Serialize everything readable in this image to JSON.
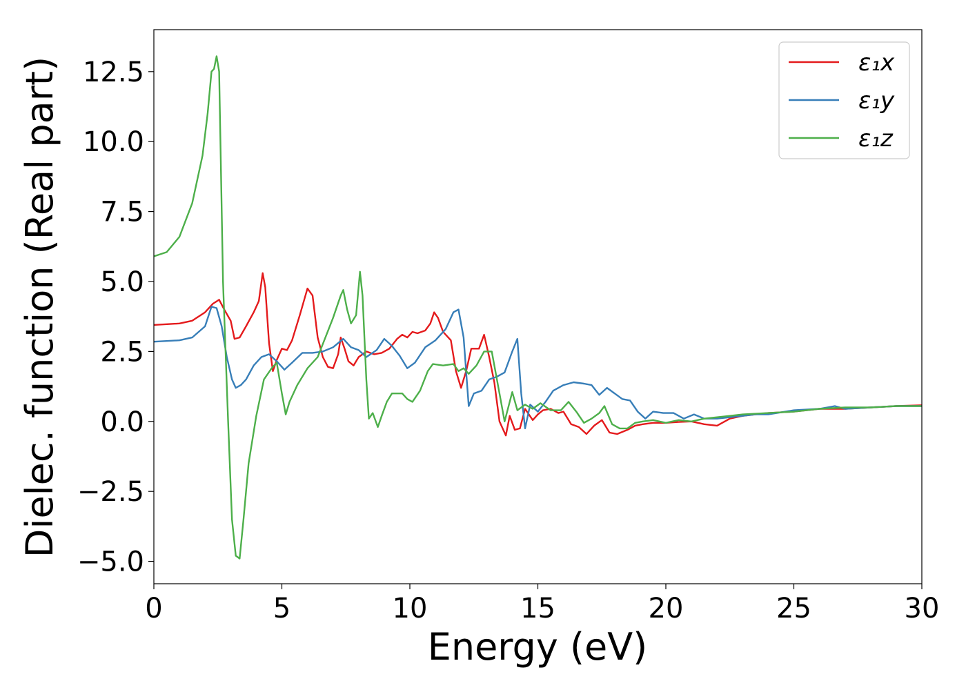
{
  "chart_data": {
    "type": "line",
    "title": "",
    "xlabel": "Energy (eV)",
    "ylabel": "Dielec. function (Real part)",
    "xlim": [
      0,
      30
    ],
    "ylim": [
      -5.8,
      14.0
    ],
    "xticks": [
      0,
      5,
      10,
      15,
      20,
      25,
      30
    ],
    "xtick_labels": [
      "0",
      "5",
      "10",
      "15",
      "20",
      "25",
      "30"
    ],
    "yticks": [
      -5.0,
      -2.5,
      0.0,
      2.5,
      5.0,
      7.5,
      10.0,
      12.5
    ],
    "ytick_labels": [
      "−5.0",
      "−2.5",
      "0.0",
      "2.5",
      "5.0",
      "7.5",
      "10.0",
      "12.5"
    ],
    "grid": false,
    "legend_position": "top-right",
    "series": [
      {
        "name": "ε₁x",
        "color": "#e41a1c",
        "points": [
          [
            0,
            3.45
          ],
          [
            1,
            3.5
          ],
          [
            1.5,
            3.6
          ],
          [
            2,
            3.9
          ],
          [
            2.3,
            4.2
          ],
          [
            2.55,
            4.35
          ],
          [
            2.75,
            4.0
          ],
          [
            3.0,
            3.6
          ],
          [
            3.15,
            2.95
          ],
          [
            3.35,
            3.0
          ],
          [
            3.6,
            3.4
          ],
          [
            3.9,
            3.9
          ],
          [
            4.1,
            4.3
          ],
          [
            4.25,
            5.3
          ],
          [
            4.35,
            4.8
          ],
          [
            4.5,
            2.8
          ],
          [
            4.65,
            1.8
          ],
          [
            4.8,
            2.2
          ],
          [
            5.0,
            2.6
          ],
          [
            5.2,
            2.55
          ],
          [
            5.4,
            2.9
          ],
          [
            5.7,
            3.8
          ],
          [
            6.0,
            4.75
          ],
          [
            6.2,
            4.5
          ],
          [
            6.4,
            3.0
          ],
          [
            6.6,
            2.3
          ],
          [
            6.8,
            1.95
          ],
          [
            7.0,
            1.9
          ],
          [
            7.2,
            2.4
          ],
          [
            7.3,
            3.0
          ],
          [
            7.45,
            2.6
          ],
          [
            7.6,
            2.15
          ],
          [
            7.8,
            2.0
          ],
          [
            8.0,
            2.3
          ],
          [
            8.3,
            2.5
          ],
          [
            8.6,
            2.4
          ],
          [
            8.9,
            2.45
          ],
          [
            9.2,
            2.6
          ],
          [
            9.5,
            2.95
          ],
          [
            9.7,
            3.1
          ],
          [
            9.9,
            3.0
          ],
          [
            10.1,
            3.2
          ],
          [
            10.3,
            3.15
          ],
          [
            10.6,
            3.25
          ],
          [
            10.8,
            3.5
          ],
          [
            10.95,
            3.9
          ],
          [
            11.1,
            3.7
          ],
          [
            11.3,
            3.2
          ],
          [
            11.6,
            2.9
          ],
          [
            11.8,
            1.8
          ],
          [
            12.0,
            1.2
          ],
          [
            12.2,
            1.8
          ],
          [
            12.4,
            2.6
          ],
          [
            12.7,
            2.6
          ],
          [
            12.9,
            3.1
          ],
          [
            13.1,
            2.3
          ],
          [
            13.3,
            1.4
          ],
          [
            13.5,
            0.0
          ],
          [
            13.75,
            -0.5
          ],
          [
            13.9,
            0.2
          ],
          [
            14.1,
            -0.3
          ],
          [
            14.3,
            -0.25
          ],
          [
            14.5,
            0.45
          ],
          [
            14.8,
            0.05
          ],
          [
            15.0,
            0.25
          ],
          [
            15.2,
            0.4
          ],
          [
            15.5,
            0.45
          ],
          [
            15.8,
            0.3
          ],
          [
            16.0,
            0.35
          ],
          [
            16.3,
            -0.1
          ],
          [
            16.6,
            -0.2
          ],
          [
            16.9,
            -0.45
          ],
          [
            17.2,
            -0.15
          ],
          [
            17.5,
            0.05
          ],
          [
            17.8,
            -0.4
          ],
          [
            18.1,
            -0.45
          ],
          [
            18.5,
            -0.3
          ],
          [
            18.8,
            -0.15
          ],
          [
            19.1,
            -0.1
          ],
          [
            19.5,
            -0.05
          ],
          [
            20.0,
            -0.05
          ],
          [
            20.5,
            -0.02
          ],
          [
            21.0,
            0.0
          ],
          [
            21.5,
            -0.1
          ],
          [
            22.0,
            -0.15
          ],
          [
            22.5,
            0.1
          ],
          [
            23.0,
            0.2
          ],
          [
            23.5,
            0.25
          ],
          [
            24.0,
            0.3
          ],
          [
            25.0,
            0.35
          ],
          [
            26.0,
            0.45
          ],
          [
            27.0,
            0.45
          ],
          [
            28.0,
            0.5
          ],
          [
            29.0,
            0.55
          ],
          [
            30.0,
            0.58
          ]
        ]
      },
      {
        "name": "ε₁y",
        "color": "#377eb8",
        "points": [
          [
            0,
            2.85
          ],
          [
            1,
            2.9
          ],
          [
            1.5,
            3.0
          ],
          [
            2.0,
            3.4
          ],
          [
            2.25,
            4.1
          ],
          [
            2.45,
            4.05
          ],
          [
            2.65,
            3.4
          ],
          [
            2.85,
            2.3
          ],
          [
            3.05,
            1.5
          ],
          [
            3.2,
            1.2
          ],
          [
            3.4,
            1.3
          ],
          [
            3.6,
            1.5
          ],
          [
            3.9,
            2.0
          ],
          [
            4.2,
            2.3
          ],
          [
            4.5,
            2.4
          ],
          [
            4.8,
            2.15
          ],
          [
            5.1,
            1.85
          ],
          [
            5.4,
            2.1
          ],
          [
            5.8,
            2.45
          ],
          [
            6.2,
            2.45
          ],
          [
            6.6,
            2.5
          ],
          [
            7.0,
            2.65
          ],
          [
            7.4,
            2.95
          ],
          [
            7.7,
            2.65
          ],
          [
            8.0,
            2.55
          ],
          [
            8.3,
            2.3
          ],
          [
            8.7,
            2.55
          ],
          [
            9.0,
            2.95
          ],
          [
            9.3,
            2.7
          ],
          [
            9.6,
            2.35
          ],
          [
            9.9,
            1.9
          ],
          [
            10.2,
            2.1
          ],
          [
            10.6,
            2.65
          ],
          [
            11.0,
            2.9
          ],
          [
            11.4,
            3.3
          ],
          [
            11.7,
            3.9
          ],
          [
            11.9,
            4.0
          ],
          [
            12.1,
            3.0
          ],
          [
            12.3,
            0.55
          ],
          [
            12.5,
            1.0
          ],
          [
            12.8,
            1.1
          ],
          [
            13.1,
            1.5
          ],
          [
            13.4,
            1.6
          ],
          [
            13.7,
            1.75
          ],
          [
            14.0,
            2.5
          ],
          [
            14.2,
            2.95
          ],
          [
            14.35,
            1.0
          ],
          [
            14.5,
            -0.25
          ],
          [
            14.7,
            0.6
          ],
          [
            15.0,
            0.35
          ],
          [
            15.3,
            0.7
          ],
          [
            15.6,
            1.1
          ],
          [
            16.0,
            1.3
          ],
          [
            16.4,
            1.4
          ],
          [
            16.8,
            1.35
          ],
          [
            17.1,
            1.3
          ],
          [
            17.4,
            0.95
          ],
          [
            17.7,
            1.2
          ],
          [
            18.0,
            1.0
          ],
          [
            18.3,
            0.8
          ],
          [
            18.6,
            0.75
          ],
          [
            18.9,
            0.35
          ],
          [
            19.2,
            0.1
          ],
          [
            19.5,
            0.35
          ],
          [
            19.9,
            0.3
          ],
          [
            20.3,
            0.3
          ],
          [
            20.7,
            0.1
          ],
          [
            21.1,
            0.25
          ],
          [
            21.5,
            0.1
          ],
          [
            22.0,
            0.1
          ],
          [
            22.5,
            0.15
          ],
          [
            23.0,
            0.2
          ],
          [
            23.5,
            0.25
          ],
          [
            24.0,
            0.25
          ],
          [
            25.0,
            0.4
          ],
          [
            26.0,
            0.45
          ],
          [
            26.6,
            0.55
          ],
          [
            27.0,
            0.45
          ],
          [
            28.0,
            0.5
          ],
          [
            29.0,
            0.55
          ],
          [
            30.0,
            0.55
          ]
        ]
      },
      {
        "name": "ε₁z",
        "color": "#4daf4a",
        "points": [
          [
            0,
            5.9
          ],
          [
            0.5,
            6.05
          ],
          [
            1.0,
            6.6
          ],
          [
            1.5,
            7.8
          ],
          [
            1.9,
            9.5
          ],
          [
            2.1,
            11.0
          ],
          [
            2.25,
            12.5
          ],
          [
            2.35,
            12.6
          ],
          [
            2.45,
            13.05
          ],
          [
            2.55,
            12.5
          ],
          [
            2.7,
            5.0
          ],
          [
            2.9,
            0.0
          ],
          [
            3.05,
            -3.5
          ],
          [
            3.2,
            -4.8
          ],
          [
            3.35,
            -4.9
          ],
          [
            3.5,
            -3.5
          ],
          [
            3.7,
            -1.5
          ],
          [
            4.0,
            0.2
          ],
          [
            4.3,
            1.5
          ],
          [
            4.6,
            1.9
          ],
          [
            4.8,
            2.1
          ],
          [
            5.0,
            1.0
          ],
          [
            5.15,
            0.25
          ],
          [
            5.3,
            0.7
          ],
          [
            5.6,
            1.3
          ],
          [
            6.0,
            1.9
          ],
          [
            6.4,
            2.3
          ],
          [
            6.7,
            3.0
          ],
          [
            7.0,
            3.7
          ],
          [
            7.3,
            4.5
          ],
          [
            7.4,
            4.7
          ],
          [
            7.55,
            4.0
          ],
          [
            7.7,
            3.5
          ],
          [
            7.9,
            3.8
          ],
          [
            8.05,
            5.35
          ],
          [
            8.15,
            4.5
          ],
          [
            8.3,
            1.5
          ],
          [
            8.4,
            0.1
          ],
          [
            8.55,
            0.3
          ],
          [
            8.75,
            -0.2
          ],
          [
            8.9,
            0.2
          ],
          [
            9.1,
            0.7
          ],
          [
            9.3,
            1.0
          ],
          [
            9.5,
            1.0
          ],
          [
            9.7,
            1.0
          ],
          [
            9.9,
            0.8
          ],
          [
            10.1,
            0.7
          ],
          [
            10.4,
            1.1
          ],
          [
            10.7,
            1.8
          ],
          [
            10.9,
            2.05
          ],
          [
            11.3,
            2.0
          ],
          [
            11.7,
            2.05
          ],
          [
            11.9,
            1.8
          ],
          [
            12.1,
            1.9
          ],
          [
            12.3,
            1.7
          ],
          [
            12.6,
            2.0
          ],
          [
            12.9,
            2.5
          ],
          [
            13.2,
            2.5
          ],
          [
            13.5,
            1.0
          ],
          [
            13.7,
            0.0
          ],
          [
            13.9,
            0.7
          ],
          [
            14.0,
            1.05
          ],
          [
            14.2,
            0.4
          ],
          [
            14.5,
            0.6
          ],
          [
            14.8,
            0.45
          ],
          [
            15.1,
            0.65
          ],
          [
            15.5,
            0.4
          ],
          [
            15.9,
            0.4
          ],
          [
            16.2,
            0.7
          ],
          [
            16.5,
            0.35
          ],
          [
            16.8,
            -0.05
          ],
          [
            17.1,
            0.1
          ],
          [
            17.4,
            0.3
          ],
          [
            17.6,
            0.55
          ],
          [
            17.9,
            -0.1
          ],
          [
            18.2,
            -0.25
          ],
          [
            18.5,
            -0.25
          ],
          [
            18.8,
            -0.05
          ],
          [
            19.1,
            0.0
          ],
          [
            19.5,
            0.05
          ],
          [
            20.0,
            -0.05
          ],
          [
            20.5,
            0.05
          ],
          [
            21.0,
            0.0
          ],
          [
            21.5,
            0.1
          ],
          [
            22.0,
            0.15
          ],
          [
            22.5,
            0.2
          ],
          [
            23.0,
            0.25
          ],
          [
            24.0,
            0.3
          ],
          [
            25.0,
            0.35
          ],
          [
            26.0,
            0.45
          ],
          [
            27.0,
            0.5
          ],
          [
            28.0,
            0.5
          ],
          [
            29.0,
            0.55
          ],
          [
            30.0,
            0.55
          ]
        ]
      }
    ]
  }
}
